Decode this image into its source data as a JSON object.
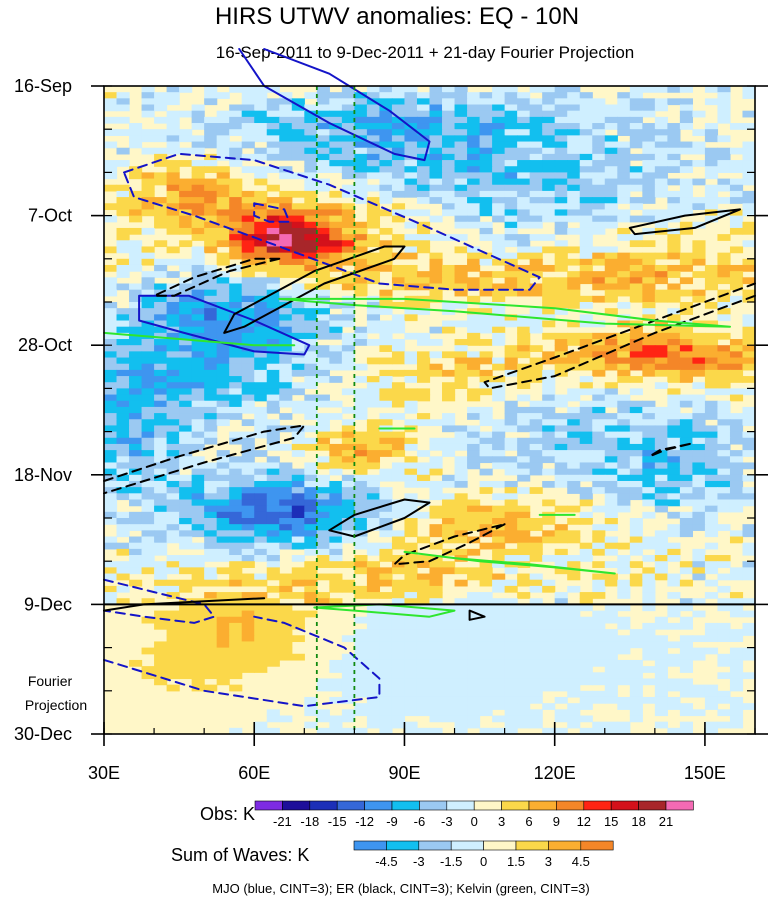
{
  "chart_data": {
    "type": "heatmap",
    "title": "HIRS UTWV anomalies: EQ - 10N",
    "subtitle": "16-Sep-2011 to 9-Dec-2011 + 21-day Fourier Projection",
    "x_axis": {
      "range": [
        30,
        160
      ],
      "ticks": [
        30,
        60,
        90,
        120,
        150
      ],
      "tick_labels": [
        "30E",
        "60E",
        "90E",
        "120E",
        "150E"
      ]
    },
    "y_axis": {
      "range_days": [
        0,
        105
      ],
      "ticks_days": [
        0,
        21,
        42,
        63,
        84,
        105
      ],
      "tick_labels": [
        "16-Sep",
        "7-Oct",
        "28-Oct",
        "18-Nov",
        "9-Dec",
        "30-Dec"
      ],
      "minor_step_days": 7
    },
    "projection_line_day": 84,
    "projection_label": [
      "Fourier",
      "Projection"
    ],
    "reference_longitudes": [
      72.5,
      80
    ],
    "obs": {
      "label": "Obs: K",
      "levels": [
        -21,
        -18,
        -15,
        -12,
        -9,
        -6,
        -3,
        0,
        3,
        6,
        9,
        12,
        15,
        18,
        21
      ],
      "colors": [
        "#7d2be2",
        "#1e0f9a",
        "#1c2fb8",
        "#3567d8",
        "#3e95f0",
        "#12bfef",
        "#9bc9f2",
        "#cfefff",
        "#fff7c8",
        "#fbd84a",
        "#fbae30",
        "#f48628",
        "#ff2414",
        "#d4111b",
        "#a8262a",
        "#f46ab4"
      ],
      "anomalies": [
        {
          "lon": 67,
          "day": 25,
          "amp": 17,
          "slon": 7,
          "sday": 2.5
        },
        {
          "lon": 70,
          "day": 21,
          "amp": 8,
          "slon": 18,
          "sday": 6
        },
        {
          "lon": 48,
          "day": 16,
          "amp": 7,
          "slon": 10,
          "sday": 4
        },
        {
          "lon": 110,
          "day": 31,
          "amp": 6,
          "slon": 40,
          "sday": 3
        },
        {
          "lon": 135,
          "day": 43,
          "amp": 8,
          "slon": 14,
          "sday": 3
        },
        {
          "lon": 150,
          "day": 45,
          "amp": 6,
          "slon": 10,
          "sday": 3
        },
        {
          "lon": 82,
          "day": 59,
          "amp": 8,
          "slon": 7,
          "sday": 3
        },
        {
          "lon": 107,
          "day": 71,
          "amp": 7,
          "slon": 15,
          "sday": 3
        },
        {
          "lon": 55,
          "day": 91,
          "amp": 10,
          "slon": 17,
          "sday": 6
        },
        {
          "lon": 90,
          "day": 79,
          "amp": 4,
          "slon": 22,
          "sday": 3
        },
        {
          "lon": 140,
          "day": 27,
          "amp": 4,
          "slon": 15,
          "sday": 5
        },
        {
          "lon": 100,
          "day": 47,
          "amp": 4,
          "slon": 15,
          "sday": 3
        },
        {
          "lon": 55,
          "day": 36,
          "amp": -10,
          "slon": 14,
          "sday": 5
        },
        {
          "lon": 45,
          "day": 47,
          "amp": -7,
          "slon": 17,
          "sday": 5
        },
        {
          "lon": 65,
          "day": 69,
          "amp": -13,
          "slon": 14,
          "sday": 4
        },
        {
          "lon": 80,
          "day": 12,
          "amp": -6,
          "slon": 30,
          "sday": 5
        },
        {
          "lon": 115,
          "day": 19,
          "amp": -4,
          "slon": 25,
          "sday": 8
        },
        {
          "lon": 130,
          "day": 57,
          "amp": -4,
          "slon": 20,
          "sday": 6
        },
        {
          "lon": 105,
          "day": 87,
          "amp": -5,
          "slon": 12,
          "sday": 2.5
        },
        {
          "lon": 145,
          "day": 63,
          "amp": -4,
          "slon": 10,
          "sday": 5
        },
        {
          "lon": 90,
          "day": 5,
          "amp": -5,
          "slon": 20,
          "sday": 3
        },
        {
          "lon": 35,
          "day": 58,
          "amp": -6,
          "slon": 8,
          "sday": 6
        }
      ],
      "projection_anomalies": [
        {
          "lon": 58,
          "day": 88,
          "amp": 6,
          "slon": 12,
          "sday": 6
        },
        {
          "lon": 40,
          "day": 97,
          "amp": 2,
          "slon": 12,
          "sday": 8
        },
        {
          "lon": 100,
          "day": 92,
          "amp": -2,
          "slon": 20,
          "sday": 6
        }
      ]
    },
    "sum_of_waves": {
      "label": "Sum of Waves: K",
      "levels": [
        -4.5,
        -3,
        -1.5,
        0,
        1.5,
        3,
        4.5
      ],
      "colors": [
        "#3e95f0",
        "#12bfef",
        "#9bc9f2",
        "#cfefff",
        "#fff7c8",
        "#fbd84a",
        "#fbae30",
        "#f48628"
      ]
    },
    "contours": [
      {
        "wave": "MJO",
        "color": "#1414c8",
        "dashed": false,
        "points": [
          [
            62,
            -6
          ],
          [
            75,
            -2
          ],
          [
            87,
            4
          ],
          [
            95,
            9
          ],
          [
            94,
            12
          ],
          [
            88,
            11
          ],
          [
            75,
            6
          ],
          [
            62,
            0
          ],
          [
            57,
            -6
          ]
        ]
      },
      {
        "wave": "MJO",
        "color": "#1414c8",
        "dashed": true,
        "points": [
          [
            34,
            14
          ],
          [
            45,
            11
          ],
          [
            60,
            12
          ],
          [
            75,
            16
          ],
          [
            95,
            23
          ],
          [
            117,
            31
          ],
          [
            115,
            33
          ],
          [
            100,
            33
          ],
          [
            85,
            32
          ],
          [
            65,
            26
          ],
          [
            48,
            21
          ],
          [
            36,
            18
          ],
          [
            34,
            14
          ]
        ]
      },
      {
        "wave": "MJO",
        "color": "#1414c8",
        "dashed": true,
        "points": [
          [
            60,
            19
          ],
          [
            66,
            20
          ],
          [
            67,
            22
          ],
          [
            63,
            22
          ],
          [
            60,
            21
          ],
          [
            60,
            19
          ]
        ]
      },
      {
        "wave": "MJO",
        "color": "#1414c8",
        "dashed": false,
        "points": [
          [
            37,
            34
          ],
          [
            47,
            34
          ],
          [
            60,
            38
          ],
          [
            71,
            42
          ],
          [
            70,
            43.5
          ],
          [
            60,
            43
          ],
          [
            46,
            40
          ],
          [
            37,
            38
          ],
          [
            37,
            34
          ]
        ]
      },
      {
        "wave": "MJO",
        "color": "#1414c8",
        "dashed": true,
        "points": [
          [
            30,
            80
          ],
          [
            40,
            82
          ],
          [
            50,
            84
          ],
          [
            52,
            86
          ],
          [
            48,
            87
          ],
          [
            38,
            86
          ],
          [
            30,
            85
          ]
        ]
      },
      {
        "wave": "MJO",
        "color": "#1414c8",
        "dashed": true,
        "points": [
          [
            30,
            93
          ],
          [
            50,
            98
          ],
          [
            70,
            100.5
          ],
          [
            85,
            99
          ],
          [
            85,
            96
          ],
          [
            78,
            91
          ],
          [
            66,
            87
          ],
          [
            60,
            86
          ]
        ]
      },
      {
        "wave": "ER",
        "color": "#000000",
        "dashed": false,
        "points": [
          [
            90,
            26
          ],
          [
            88,
            28
          ],
          [
            74,
            32
          ],
          [
            58,
            39
          ],
          [
            54,
            40
          ],
          [
            56,
            37
          ],
          [
            72,
            30
          ],
          [
            86,
            26
          ],
          [
            90,
            26
          ]
        ]
      },
      {
        "wave": "ER",
        "color": "#000000",
        "dashed": true,
        "points": [
          [
            65,
            28
          ],
          [
            55,
            30
          ],
          [
            44,
            34
          ],
          [
            40,
            34
          ],
          [
            48,
            31
          ],
          [
            60,
            28
          ],
          [
            65,
            28
          ]
        ]
      },
      {
        "wave": "ER",
        "color": "#000000",
        "dashed": false,
        "points": [
          [
            157,
            20
          ],
          [
            148,
            23
          ],
          [
            136,
            24
          ],
          [
            135,
            23
          ],
          [
            146,
            21
          ],
          [
            157,
            20
          ]
        ]
      },
      {
        "wave": "ER",
        "color": "#000000",
        "dashed": true,
        "points": [
          [
            160,
            34
          ],
          [
            140,
            40
          ],
          [
            120,
            47
          ],
          [
            107,
            49
          ],
          [
            106,
            48
          ],
          [
            120,
            44
          ],
          [
            140,
            38
          ],
          [
            160,
            32
          ]
        ]
      },
      {
        "wave": "ER",
        "color": "#000000",
        "dashed": true,
        "points": [
          [
            30,
            64
          ],
          [
            45,
            60
          ],
          [
            62,
            56
          ],
          [
            70,
            55
          ],
          [
            68,
            57
          ],
          [
            50,
            61
          ],
          [
            30,
            66
          ]
        ]
      },
      {
        "wave": "ER",
        "color": "#000000",
        "dashed": false,
        "points": [
          [
            95,
            67.5
          ],
          [
            90,
            70
          ],
          [
            80,
            73
          ],
          [
            75,
            72
          ],
          [
            80,
            69.5
          ],
          [
            90,
            67
          ],
          [
            95,
            67.5
          ]
        ]
      },
      {
        "wave": "ER",
        "color": "#000000",
        "dashed": true,
        "points": [
          [
            110,
            71
          ],
          [
            103,
            74
          ],
          [
            95,
            77
          ],
          [
            88,
            77.5
          ],
          [
            90,
            76
          ],
          [
            100,
            73
          ],
          [
            110,
            71
          ]
        ]
      },
      {
        "wave": "ER",
        "color": "#000000",
        "dashed": true,
        "points": [
          [
            147,
            58
          ],
          [
            142,
            59
          ],
          [
            139,
            60
          ],
          [
            141,
            59
          ],
          [
            147,
            58
          ]
        ]
      },
      {
        "wave": "ER",
        "color": "#000000",
        "dashed": false,
        "points": [
          [
            30,
            85
          ],
          [
            38,
            84
          ],
          [
            50,
            83.5
          ],
          [
            62,
            83
          ]
        ]
      },
      {
        "wave": "ER",
        "color": "#000000",
        "dashed": false,
        "points": [
          [
            103,
            85
          ],
          [
            106,
            86
          ],
          [
            103,
            86.5
          ],
          [
            103,
            85
          ]
        ]
      },
      {
        "wave": "Kelvin",
        "color": "#2ee62e",
        "dashed": false,
        "points": [
          [
            65,
            34.5
          ],
          [
            90,
            34.5
          ],
          [
            120,
            36
          ],
          [
            140,
            38
          ],
          [
            155,
            39
          ],
          [
            130,
            38.5
          ],
          [
            100,
            36.5
          ],
          [
            80,
            35.5
          ],
          [
            65,
            34.5
          ]
        ]
      },
      {
        "wave": "Kelvin",
        "color": "#2ee62e",
        "dashed": false,
        "points": [
          [
            30,
            40
          ],
          [
            45,
            41
          ],
          [
            60,
            42
          ],
          [
            68,
            42
          ]
        ]
      },
      {
        "wave": "Kelvin",
        "color": "#2ee62e",
        "dashed": false,
        "points": [
          [
            90,
            75.5
          ],
          [
            105,
            77
          ],
          [
            120,
            78
          ],
          [
            132,
            79
          ],
          [
            115,
            77.5
          ],
          [
            100,
            76.5
          ],
          [
            90,
            75.5
          ]
        ]
      },
      {
        "wave": "Kelvin",
        "color": "#2ee62e",
        "dashed": false,
        "points": [
          [
            72,
            84.5
          ],
          [
            85,
            84
          ],
          [
            100,
            85
          ],
          [
            95,
            86
          ],
          [
            80,
            85
          ],
          [
            72,
            84.5
          ]
        ]
      },
      {
        "wave": "Kelvin",
        "color": "#2ee62e",
        "dashed": false,
        "points": [
          [
            85,
            55.5
          ],
          [
            92,
            55.5
          ]
        ]
      },
      {
        "wave": "Kelvin",
        "color": "#2ee62e",
        "dashed": false,
        "points": [
          [
            117,
            69.5
          ],
          [
            124,
            69.5
          ]
        ]
      }
    ],
    "footer_note": "MJO (blue, CINT=3); ER (black, CINT=3); Kelvin (green, CINT=3)"
  }
}
